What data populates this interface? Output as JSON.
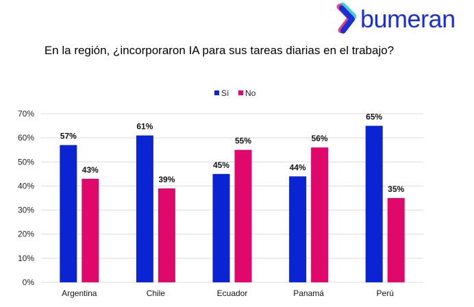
{
  "logo": {
    "text": "bumeran",
    "colors": {
      "blue": "#1a2ed8",
      "pink": "#e0286f",
      "teal": "#3fd3cf"
    }
  },
  "chart_data": {
    "type": "bar",
    "title": "En la región, ¿incorporaron IA para sus tareas diarias en el trabajo?",
    "categories": [
      "Argentina",
      "Chile",
      "Ecuador",
      "Panamá",
      "Perú"
    ],
    "series": [
      {
        "name": "Sí",
        "color": "#0a24d4",
        "values": [
          57,
          61,
          45,
          44,
          65
        ]
      },
      {
        "name": "No",
        "color": "#e0086a",
        "values": [
          43,
          39,
          55,
          56,
          35
        ]
      }
    ],
    "yticks": [
      "0%",
      "10%",
      "20%",
      "30%",
      "40%",
      "50%",
      "60%",
      "70%"
    ],
    "ylim": [
      0,
      70
    ],
    "value_suffix": "%",
    "grid": true,
    "legend": "top-center",
    "xlabel": "",
    "ylabel": ""
  }
}
